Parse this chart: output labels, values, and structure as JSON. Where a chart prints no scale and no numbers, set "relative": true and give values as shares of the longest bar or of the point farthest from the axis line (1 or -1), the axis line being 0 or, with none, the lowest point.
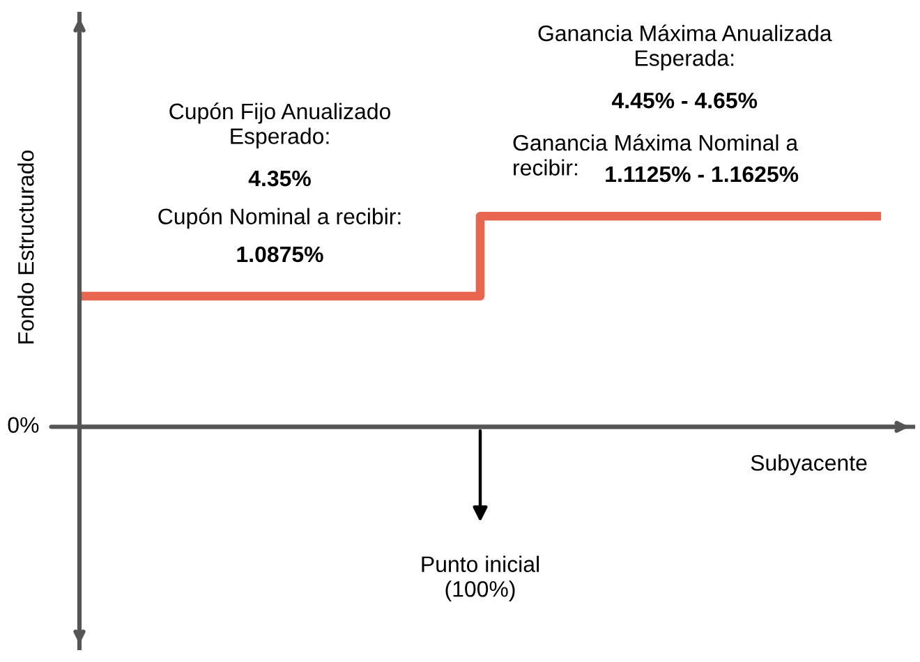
{
  "chart_data": {
    "type": "step",
    "relative": true,
    "ylabel": "Fondo Estructurado",
    "xlabel": "Subyacente",
    "categories": [
      null,
      null,
      null
    ],
    "series": [
      {
        "color": "#e8664f",
        "values": [
          0.62,
          1,
          1
        ]
      }
    ],
    "annotations": [
      "0%",
      "Cupón Fijo Anualizado\nEsperado:",
      "4.35%",
      "Cupón Nominal a recibir:",
      "1.0875%",
      "Ganancia Máxima Anualizada\nEsperada:",
      "4.45% - 4.65%",
      "Ganancia Máxima Nominal a\nrecibir:",
      "1.1125% - 1.1625%",
      "Punto inicial\n(100%)"
    ]
  }
}
